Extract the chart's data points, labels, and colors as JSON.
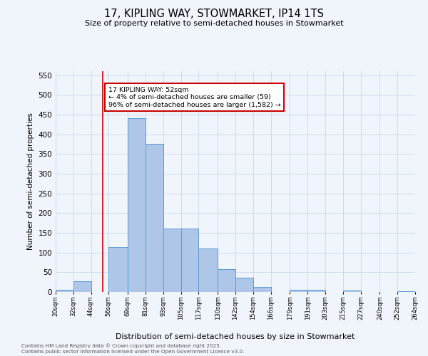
{
  "title": "17, KIPLING WAY, STOWMARKET, IP14 1TS",
  "subtitle": "Size of property relative to semi-detached houses in Stowmarket",
  "xlabel": "Distribution of semi-detached houses by size in Stowmarket",
  "ylabel": "Number of semi-detached properties",
  "footer_line1": "Contains HM Land Registry data © Crown copyright and database right 2025.",
  "footer_line2": "Contains public sector information licensed under the Open Government Licence v3.0.",
  "annotation_title": "17 KIPLING WAY: 52sqm",
  "annotation_line1": "← 4% of semi-detached houses are smaller (59)",
  "annotation_line2": "96% of semi-detached houses are larger (1,582) →",
  "property_size": 52,
  "bin_edges": [
    20,
    32,
    44,
    56,
    69,
    81,
    93,
    105,
    117,
    130,
    142,
    154,
    166,
    179,
    191,
    203,
    215,
    227,
    240,
    252,
    264
  ],
  "bar_values": [
    5,
    28,
    0,
    113,
    440,
    375,
    160,
    160,
    110,
    58,
    37,
    13,
    0,
    6,
    6,
    0,
    3,
    0,
    0,
    2
  ],
  "bar_color": "#aec6e8",
  "bar_edge_color": "#5b9bd5",
  "highlight_line_color": "#cc0000",
  "annotation_box_color": "#cc0000",
  "background_color": "#f0f4fb",
  "grid_color": "#c8d8ec",
  "ylim": [
    0,
    560
  ],
  "yticks": [
    0,
    50,
    100,
    150,
    200,
    250,
    300,
    350,
    400,
    450,
    500,
    550
  ]
}
